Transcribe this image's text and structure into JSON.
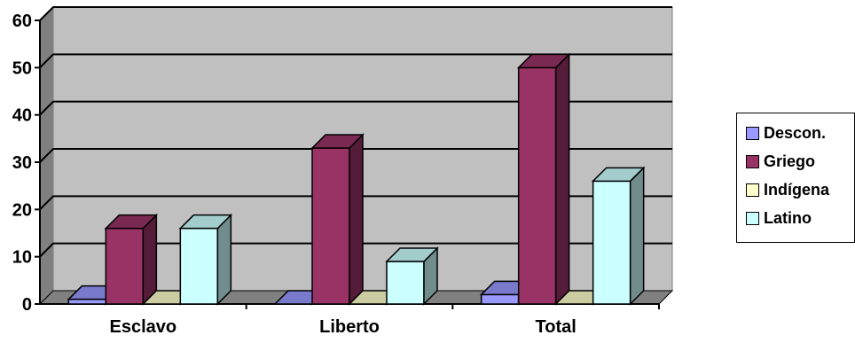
{
  "chart_data": {
    "type": "bar",
    "categories": [
      "Esclavo",
      "Liberto",
      "Total"
    ],
    "series": [
      {
        "name": "Descon.",
        "values": [
          1,
          0,
          2
        ],
        "color": "#9999ff"
      },
      {
        "name": "Griego",
        "values": [
          16,
          33,
          50
        ],
        "color": "#993366"
      },
      {
        "name": "Indígena",
        "values": [
          0,
          0,
          0
        ],
        "color": "#ffffcc"
      },
      {
        "name": "Latino",
        "values": [
          16,
          9,
          26
        ],
        "color": "#ccffff"
      }
    ],
    "y_ticks": [
      "0",
      "10",
      "20",
      "30",
      "40",
      "50",
      "60"
    ],
    "ylim": [
      0,
      60
    ],
    "grid": true,
    "legend_position": "right",
    "plot_background": "#c0c0c0"
  }
}
